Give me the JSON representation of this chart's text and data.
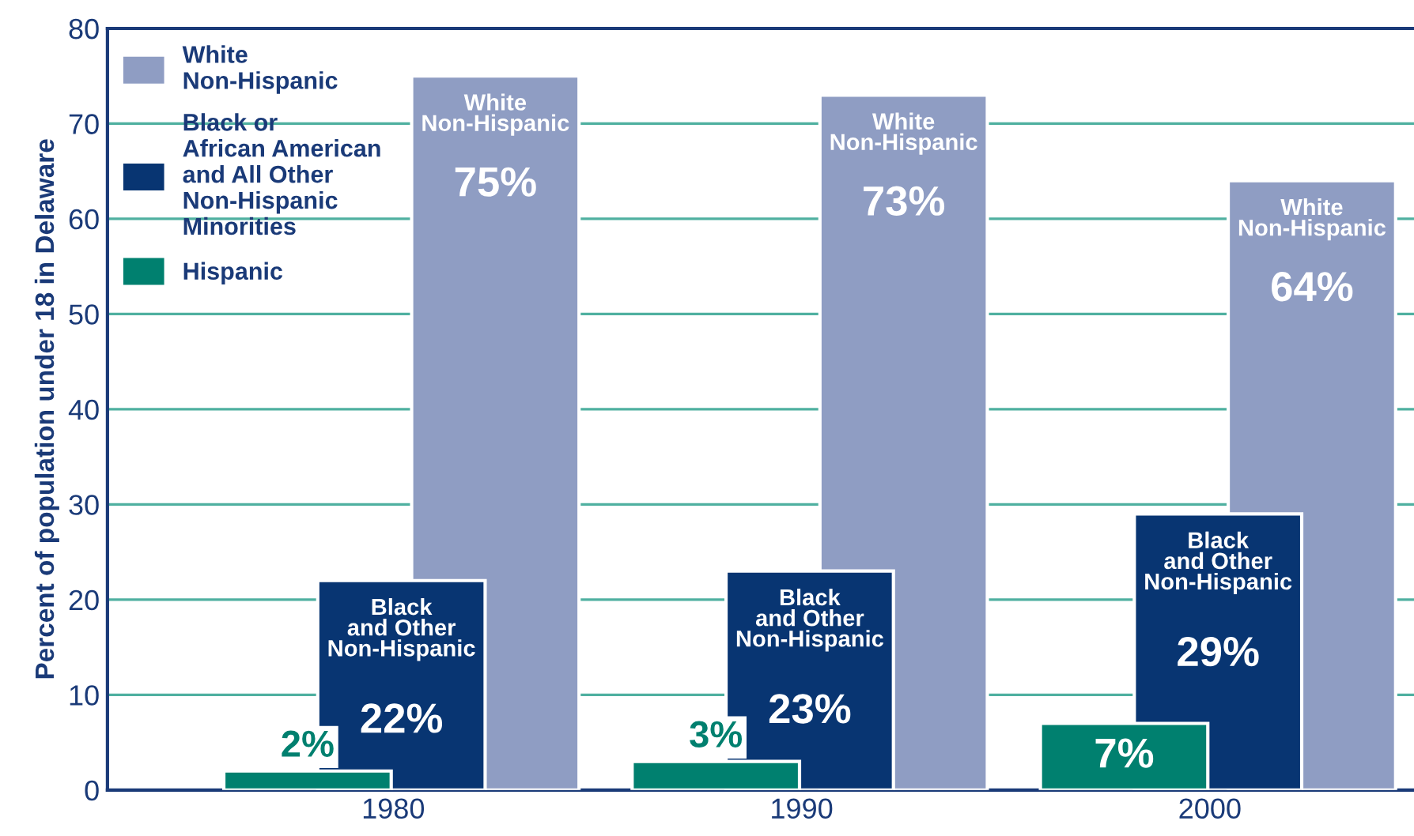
{
  "chart_data": {
    "type": "bar",
    "ylabel": "Percent of population under 18 in Delaware",
    "categories": [
      "1980",
      "1990",
      "2000"
    ],
    "series": [
      {
        "name": "White\nNon-Hispanic",
        "color": "#8f9dc3",
        "values": [
          75,
          73,
          64
        ],
        "value_labels": [
          "75%",
          "73%",
          "64%"
        ]
      },
      {
        "name": "Black or\nAfrican American\nand All Other\nNon-Hispanic\nMinorities",
        "color": "#083572",
        "values": [
          22,
          23,
          29
        ],
        "value_labels": [
          "22%",
          "23%",
          "29%"
        ]
      },
      {
        "name": "Hispanic",
        "color": "#00806f",
        "values": [
          2,
          3,
          7
        ],
        "value_labels": [
          "2%",
          "3%",
          "7%"
        ]
      }
    ],
    "annotations": [
      "White\nNon-Hispanic",
      "White\nNon-Hispanic",
      "White\nNon-Hispanic",
      "Black\nand Other\nNon-Hispanic",
      "Black\nand Other\nNon-Hispanic",
      "Black\nand Other\nNon-Hispanic"
    ],
    "ylim": [
      0,
      80
    ],
    "yticks": [
      0,
      10,
      20,
      30,
      40,
      50,
      60,
      70,
      80
    ],
    "grid": "y",
    "legend": "top left"
  }
}
